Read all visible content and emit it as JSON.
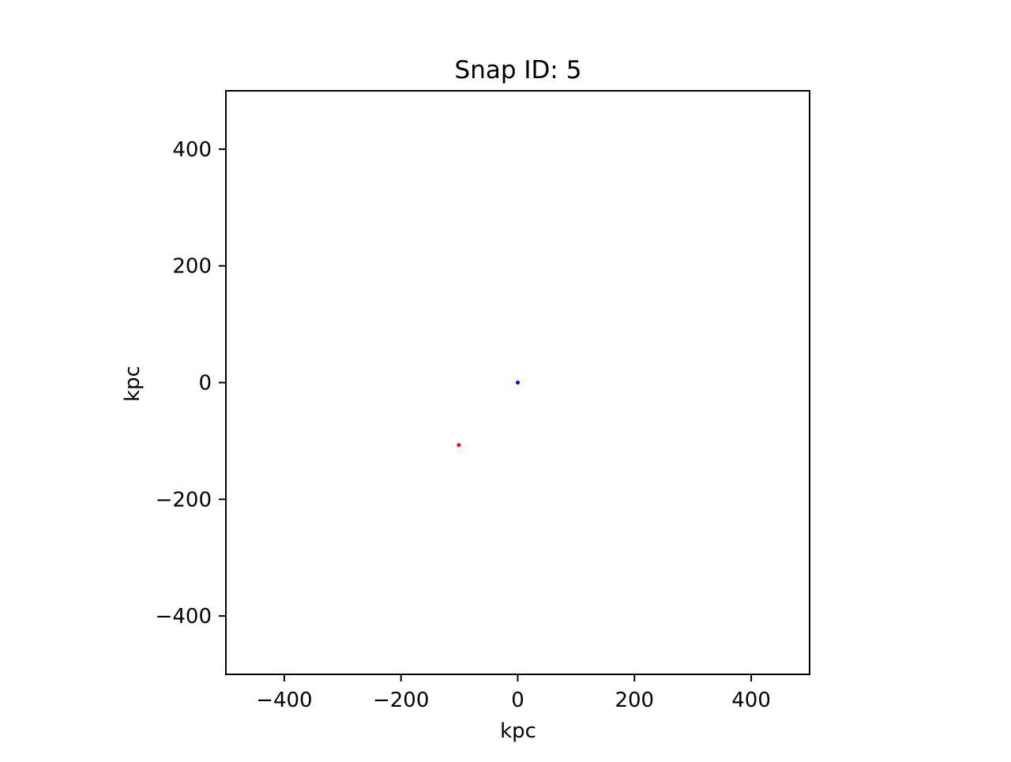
{
  "chart_data": {
    "type": "scatter",
    "title": "Snap ID: 5",
    "xlabel": "kpc",
    "ylabel": "kpc",
    "xlim": [
      -500,
      500
    ],
    "ylim": [
      -500,
      500
    ],
    "xticks": [
      -400,
      -200,
      0,
      200,
      400
    ],
    "yticks": [
      -400,
      -200,
      0,
      200,
      400
    ],
    "tick_labels_x": [
      "−400",
      "−200",
      "0",
      "200",
      "400"
    ],
    "tick_labels_y": [
      "−400",
      "−200",
      "0",
      "200",
      "400"
    ],
    "grid": false,
    "series": [
      {
        "color": "#0000ff",
        "points": [
          {
            "x": 0,
            "y": 0
          }
        ]
      },
      {
        "color": "#ff0000",
        "points": [
          {
            "x": -101,
            "y": -107
          }
        ]
      }
    ]
  }
}
